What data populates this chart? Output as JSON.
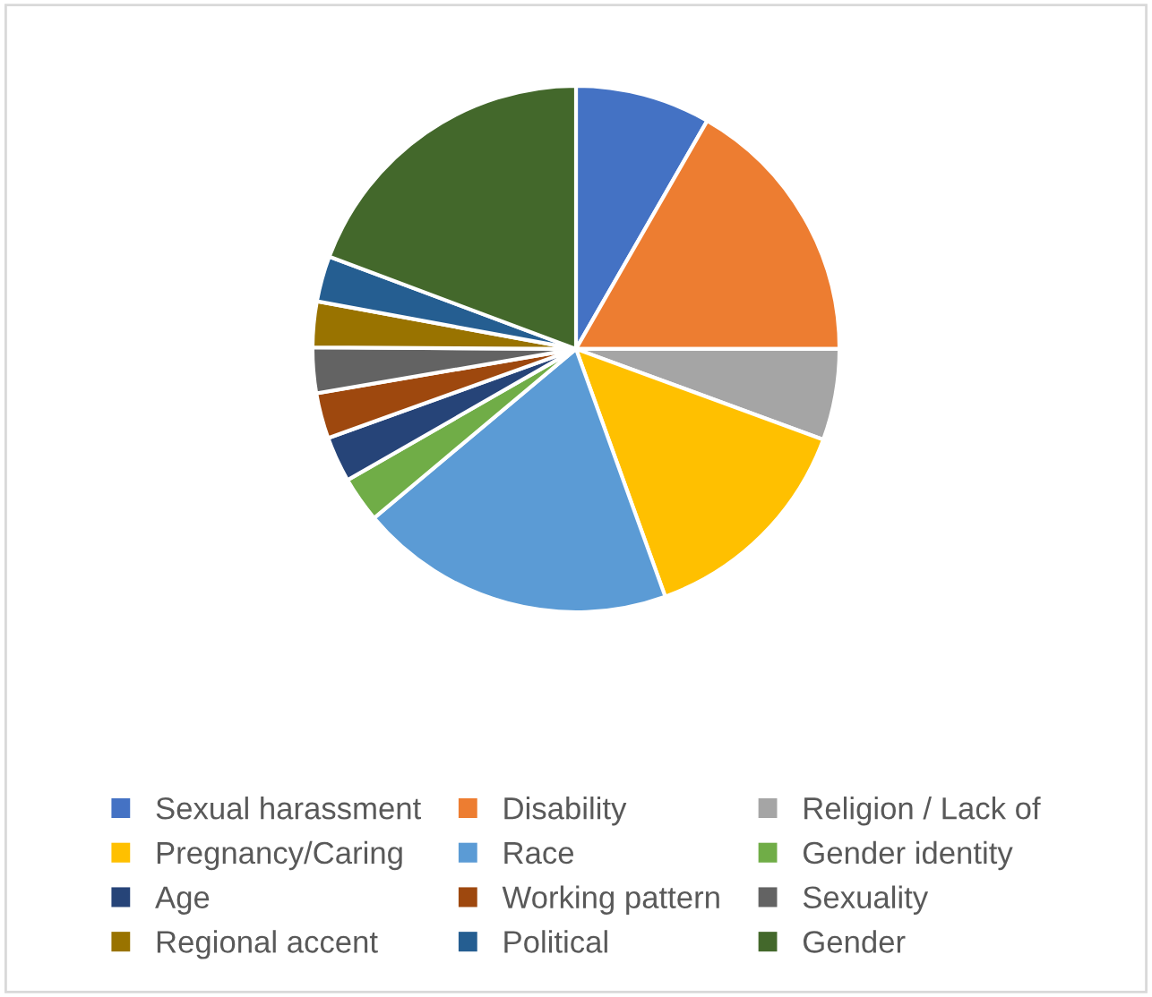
{
  "chart_data": {
    "type": "pie",
    "categories": [
      "Sexual harassment",
      "Disability",
      "Religion / Lack of",
      "Pregnancy/Caring",
      "Race",
      "Gender identity",
      "Age",
      "Working pattern",
      "Sexuality",
      "Regional accent",
      "Political",
      "Gender"
    ],
    "values": [
      8.3,
      16.7,
      5.6,
      13.9,
      19.4,
      2.8,
      2.8,
      2.8,
      2.8,
      2.8,
      2.8,
      19.3
    ],
    "colors": [
      "#4472c4",
      "#ed7d31",
      "#a5a5a5",
      "#ffc000",
      "#5b9bd5",
      "#70ad47",
      "#264478",
      "#9e480e",
      "#636363",
      "#997300",
      "#255e91",
      "#43682b"
    ],
    "legend": "bottom"
  }
}
